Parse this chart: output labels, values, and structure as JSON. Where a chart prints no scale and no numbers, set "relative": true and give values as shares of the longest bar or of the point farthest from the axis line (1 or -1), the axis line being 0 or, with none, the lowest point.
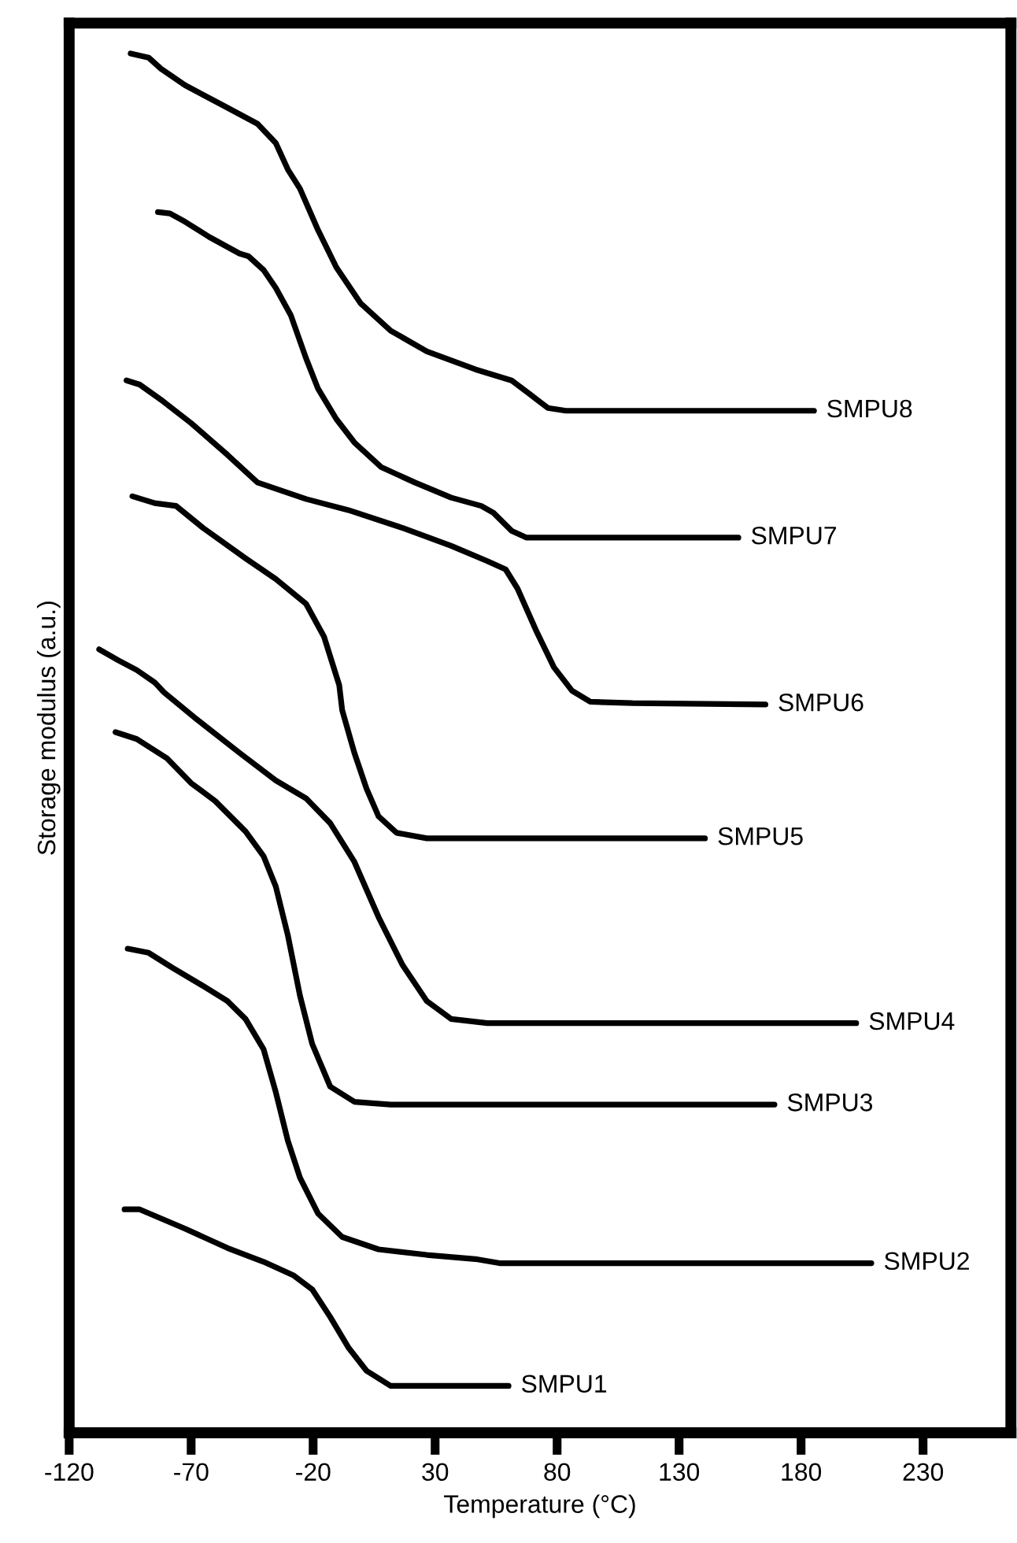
{
  "chart_data": {
    "type": "line",
    "relative": true,
    "xlabel": "Temperature (°C)",
    "ylabel": "Storage modulus (a.u.)",
    "xlim": [
      -120,
      266
    ],
    "xticks": [
      -120,
      -70,
      -20,
      30,
      80,
      130,
      180,
      230
    ],
    "tick_labels": "x",
    "grid": false,
    "legend": false,
    "marker": "none",
    "line_style": "solid",
    "series": [
      {
        "name": "SMPU1",
        "color": "#000000",
        "x": [
          -97.3,
          -91.1,
          -72.5,
          -55.1,
          -40.3,
          -27.9,
          -20.4,
          -13.0,
          -5.6,
          1.9,
          11.8,
          60.1
        ],
        "values": [
          0.162,
          0.162,
          0.148,
          0.134,
          0.124,
          0.114,
          0.104,
          0.084,
          0.062,
          0.045,
          0.034,
          0.034
        ]
      },
      {
        "name": "SMPU2",
        "color": "#000000",
        "x": [
          -96.0,
          -87.4,
          -77.5,
          -65.1,
          -55.1,
          -47.7,
          -40.3,
          -35.3,
          -30.4,
          -25.4,
          -18.0,
          -8.1,
          6.8,
          26.6,
          46.5,
          56.4,
          208.8
        ],
        "values": [
          0.351,
          0.348,
          0.337,
          0.324,
          0.313,
          0.3,
          0.278,
          0.247,
          0.212,
          0.185,
          0.159,
          0.142,
          0.133,
          0.129,
          0.126,
          0.123,
          0.123
        ]
      },
      {
        "name": "SMPU3",
        "color": "#000000",
        "x": [
          -101.0,
          -92.3,
          -79.9,
          -70.0,
          -60.1,
          -47.7,
          -40.3,
          -35.3,
          -30.4,
          -25.4,
          -20.4,
          -13.0,
          -3.1,
          11.8,
          169.1
        ],
        "values": [
          0.508,
          0.503,
          0.489,
          0.471,
          0.458,
          0.436,
          0.418,
          0.396,
          0.361,
          0.317,
          0.282,
          0.251,
          0.24,
          0.238,
          0.238
        ]
      },
      {
        "name": "SMPU4",
        "color": "#000000",
        "x": [
          -107.7,
          -99.8,
          -92.3,
          -84.9,
          -81.2,
          -67.5,
          -50.2,
          -35.3,
          -22.9,
          -13.0,
          -3.1,
          6.8,
          16.7,
          26.6,
          36.6,
          51.4,
          202.6
        ],
        "values": [
          0.568,
          0.56,
          0.553,
          0.544,
          0.537,
          0.517,
          0.493,
          0.473,
          0.46,
          0.442,
          0.414,
          0.374,
          0.339,
          0.313,
          0.3,
          0.297,
          0.297
        ]
      },
      {
        "name": "SMPU5",
        "color": "#000000",
        "x": [
          -94.1,
          -84.9,
          -76.2,
          -65.1,
          -47.7,
          -35.3,
          -22.9,
          -15.5,
          -9.3,
          -8.1,
          -3.1,
          1.9,
          6.8,
          14.2,
          26.6,
          140.6
        ],
        "values": [
          0.679,
          0.674,
          0.672,
          0.656,
          0.634,
          0.619,
          0.601,
          0.577,
          0.542,
          0.524,
          0.493,
          0.467,
          0.447,
          0.435,
          0.431,
          0.431
        ]
      },
      {
        "name": "SMPU6",
        "color": "#000000",
        "x": [
          -96.5,
          -91.1,
          -82.4,
          -70.0,
          -55.1,
          -42.8,
          -22.9,
          -5.6,
          16.7,
          36.6,
          51.4,
          58.9,
          63.8,
          71.3,
          78.7,
          86.1,
          93.6,
          110.9,
          165.4
        ],
        "values": [
          0.763,
          0.76,
          0.749,
          0.732,
          0.709,
          0.689,
          0.677,
          0.669,
          0.656,
          0.643,
          0.632,
          0.626,
          0.612,
          0.582,
          0.555,
          0.538,
          0.53,
          0.529,
          0.528
        ]
      },
      {
        "name": "SMPU7",
        "color": "#000000",
        "x": [
          -83.6,
          -78.7,
          -72.5,
          -62.6,
          -50.2,
          -46.5,
          -40.3,
          -35.3,
          -29.1,
          -22.9,
          -18.0,
          -10.5,
          -3.1,
          8.0,
          21.7,
          36.6,
          48.9,
          53.9,
          61.3,
          67.5,
          154.3
        ],
        "values": [
          0.885,
          0.884,
          0.878,
          0.867,
          0.855,
          0.853,
          0.843,
          0.83,
          0.81,
          0.779,
          0.757,
          0.735,
          0.718,
          0.7,
          0.689,
          0.678,
          0.672,
          0.667,
          0.654,
          0.649,
          0.649
        ]
      },
      {
        "name": "SMPU8",
        "color": "#000000",
        "x": [
          -94.8,
          -87.4,
          -82.4,
          -72.5,
          -57.6,
          -42.8,
          -35.3,
          -30.4,
          -25.4,
          -18.0,
          -10.5,
          -0.6,
          11.8,
          26.6,
          46.5,
          61.3,
          68.8,
          76.2,
          83.6,
          185.3
        ],
        "values": [
          1.0,
          0.997,
          0.989,
          0.977,
          0.963,
          0.949,
          0.935,
          0.916,
          0.902,
          0.872,
          0.845,
          0.819,
          0.799,
          0.784,
          0.771,
          0.763,
          0.753,
          0.743,
          0.741,
          0.741
        ]
      }
    ]
  }
}
